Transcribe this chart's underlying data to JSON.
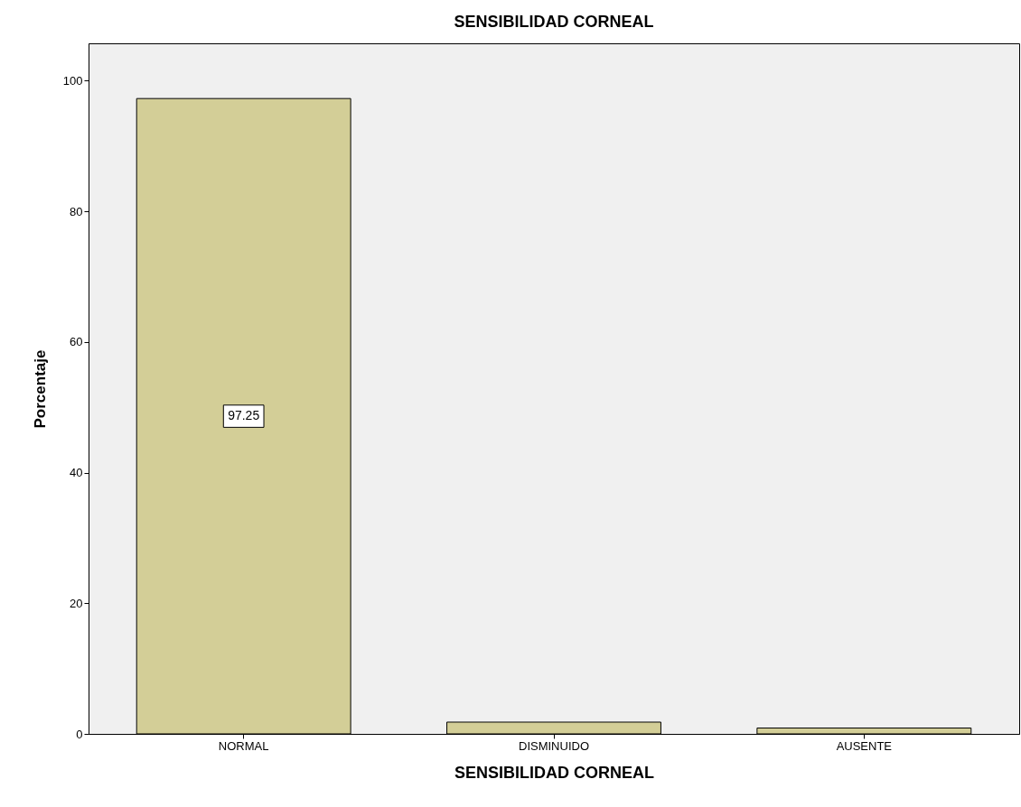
{
  "chart_data": {
    "type": "bar",
    "title": "SENSIBILIDAD CORNEAL",
    "xlabel": "SENSIBILIDAD CORNEAL",
    "ylabel": "Porcentaje",
    "categories": [
      "NORMAL",
      "DISMINUIDO",
      "AUSENTE"
    ],
    "values": [
      97.25,
      1.8,
      0.9
    ],
    "value_labels": [
      "97.25",
      null,
      null
    ],
    "color": "#d3ce97",
    "ylim": [
      0,
      105.7
    ],
    "yticks": [
      0,
      20,
      40,
      60,
      80,
      100
    ],
    "grid": false
  }
}
